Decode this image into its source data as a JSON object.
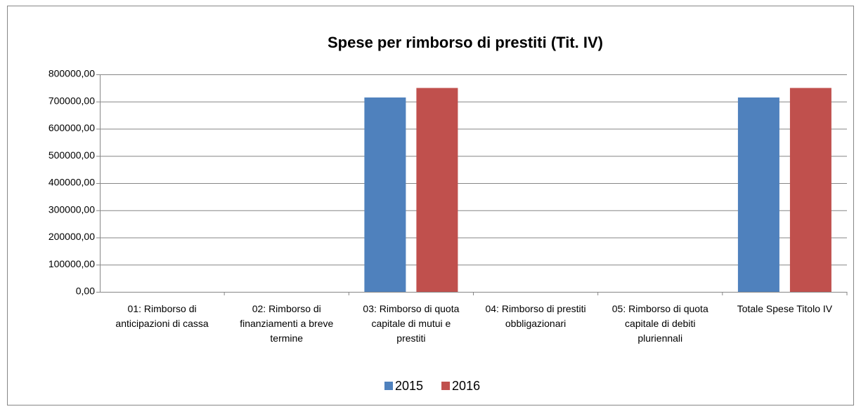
{
  "chart_data": {
    "type": "bar",
    "title": "Spese per rimborso di prestiti (Tit. IV)",
    "categories": [
      "01: Rimborso di anticipazioni di cassa",
      "02: Rimborso di finanziamenti a breve termine",
      "03: Rimborso di quota capitale di mutui e prestiti",
      "04: Rimborso di prestiti obbligazionari",
      "05: Rimborso di quota capitale di debiti pluriennali",
      "Totale Spese Titolo IV"
    ],
    "series": [
      {
        "name": "2015",
        "color": "#4f81bd",
        "values": [
          0,
          0,
          715000,
          0,
          0,
          715000
        ]
      },
      {
        "name": "2016",
        "color": "#c0504d",
        "values": [
          0,
          0,
          750000,
          0,
          0,
          750000
        ]
      }
    ],
    "ylim": [
      0,
      800000
    ],
    "yticks": [
      {
        "value": 0,
        "label": "0,00"
      },
      {
        "value": 100000,
        "label": "100000,00"
      },
      {
        "value": 200000,
        "label": "200000,00"
      },
      {
        "value": 300000,
        "label": "300000,00"
      },
      {
        "value": 400000,
        "label": "400000,00"
      },
      {
        "value": 500000,
        "label": "500000,00"
      },
      {
        "value": 600000,
        "label": "600000,00"
      },
      {
        "value": 700000,
        "label": "700000,00"
      },
      {
        "value": 800000,
        "label": "800000,00"
      }
    ],
    "grid": true,
    "legend": "bottom"
  }
}
